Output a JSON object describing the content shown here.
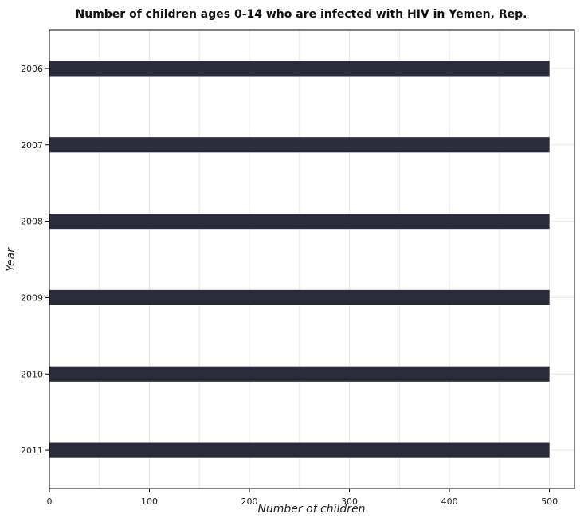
{
  "chart_data": {
    "type": "bar",
    "orientation": "horizontal",
    "title": "Number of children ages 0-14 who are infected with HIV in Yemen, Rep.",
    "xlabel": "Number of children",
    "ylabel": "Year",
    "categories": [
      "2006",
      "2007",
      "2008",
      "2009",
      "2010",
      "2011"
    ],
    "values": [
      500,
      500,
      500,
      500,
      500,
      500
    ],
    "xlim": [
      0,
      525
    ],
    "xticks": [
      0,
      100,
      200,
      300,
      400,
      500
    ],
    "grid": true,
    "bar_color": "#2b2b3b"
  }
}
